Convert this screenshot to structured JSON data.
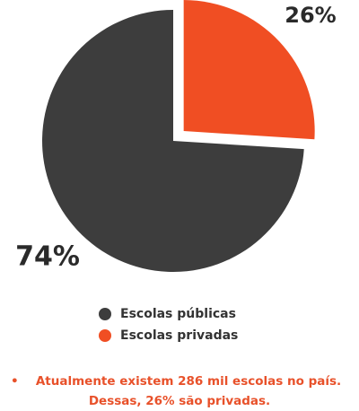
{
  "chart_data": {
    "type": "pie",
    "categories": [
      "Escolas públicas",
      "Escolas privadas"
    ],
    "values": [
      74,
      26
    ],
    "value_labels": [
      "74%",
      "26%"
    ],
    "colors": [
      "#3d3d3d",
      "#f04e23"
    ],
    "exploded": [
      false,
      true
    ],
    "note": [
      "Atualmente existem 286 mil escolas no país.",
      "Dessas, 26% são privadas."
    ]
  }
}
